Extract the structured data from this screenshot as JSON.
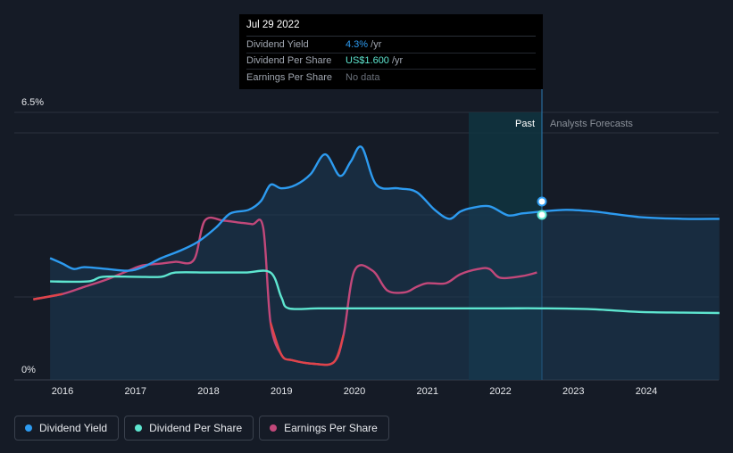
{
  "chart_data": {
    "type": "line",
    "ylim": [
      0,
      6.5
    ],
    "y_tick_labels": [
      "6.5%",
      "0%"
    ],
    "x_tick_labels": [
      "2016",
      "2017",
      "2018",
      "2019",
      "2020",
      "2021",
      "2022",
      "2023",
      "2024"
    ],
    "regions": {
      "past_label": "Past",
      "forecast_label": "Analysts Forecasts"
    },
    "series": [
      {
        "name": "Dividend Yield",
        "color": "#2d9bf0",
        "x": [
          2015.83,
          2016.0,
          2016.15,
          2016.3,
          2016.6,
          2016.9,
          2017.1,
          2017.35,
          2017.6,
          2017.85,
          2018.1,
          2018.3,
          2018.55,
          2018.72,
          2018.85,
          2019.0,
          2019.2,
          2019.4,
          2019.6,
          2019.8,
          2019.95,
          2020.1,
          2020.3,
          2020.6,
          2020.85,
          2021.1,
          2021.3,
          2021.45,
          2021.6,
          2021.85,
          2022.1,
          2022.3,
          2022.55,
          2022.9,
          2023.3,
          2023.9,
          2024.5,
          2025.0
        ],
        "y": [
          3.0,
          2.85,
          2.7,
          2.75,
          2.7,
          2.65,
          2.75,
          3.0,
          3.2,
          3.45,
          3.85,
          4.25,
          4.35,
          4.6,
          5.05,
          4.95,
          5.05,
          5.35,
          5.9,
          5.3,
          5.7,
          6.1,
          5.05,
          4.95,
          4.85,
          4.35,
          4.1,
          4.3,
          4.4,
          4.45,
          4.2,
          4.25,
          4.3,
          4.35,
          4.3,
          4.15,
          4.1,
          4.1
        ]
      },
      {
        "name": "Dividend Per Share",
        "color": "#5ee6d0",
        "x": [
          2015.83,
          2016.35,
          2016.55,
          2017.0,
          2017.35,
          2017.55,
          2018.0,
          2018.5,
          2018.85,
          2019.0,
          2019.1,
          2019.5,
          2020.0,
          2021.0,
          2022.0,
          2022.55,
          2023.2,
          2023.9,
          2024.5,
          2025.0
        ],
        "y": [
          2.35,
          2.35,
          2.48,
          2.48,
          2.48,
          2.6,
          2.6,
          2.6,
          2.6,
          1.9,
          1.6,
          1.6,
          1.6,
          1.6,
          1.6,
          1.6,
          1.58,
          1.5,
          1.48,
          1.47
        ]
      },
      {
        "name": "Earnings Per Share",
        "color": "#c2487a",
        "x": [
          2015.6,
          2016.0,
          2016.3,
          2016.6,
          2016.9,
          2017.1,
          2017.35,
          2017.55,
          2017.8,
          2017.95,
          2018.2,
          2018.4,
          2018.6,
          2018.75,
          2018.85,
          2019.0,
          2019.15,
          2019.45,
          2019.72,
          2019.85,
          2020.0,
          2020.25,
          2020.45,
          2020.7,
          2020.85,
          2021.0,
          2021.25,
          2021.45,
          2021.7,
          2021.85,
          2022.0,
          2022.3,
          2022.5
        ],
        "y": [
          1.85,
          2.0,
          2.2,
          2.4,
          2.65,
          2.8,
          2.85,
          2.9,
          2.95,
          4.05,
          4.05,
          4.0,
          3.95,
          3.85,
          1.2,
          0.3,
          0.15,
          0.05,
          0.1,
          0.85,
          2.65,
          2.65,
          2.1,
          2.05,
          2.2,
          2.3,
          2.3,
          2.55,
          2.7,
          2.7,
          2.45,
          2.5,
          2.6
        ]
      }
    ],
    "tooltip": {
      "date": "Jul 29 2022",
      "rows": [
        {
          "label": "Dividend Yield",
          "value": "4.3%",
          "unit": " /yr"
        },
        {
          "label": "Dividend Per Share",
          "value": "US$1.600",
          "unit": " /yr"
        },
        {
          "label": "Earnings Per Share",
          "value": "No data",
          "unit": ""
        }
      ]
    }
  },
  "legend": [
    {
      "label": "Dividend Yield",
      "color": "#2d9bf0"
    },
    {
      "label": "Dividend Per Share",
      "color": "#5ee6d0"
    },
    {
      "label": "Earnings Per Share",
      "color": "#c2487a"
    }
  ]
}
